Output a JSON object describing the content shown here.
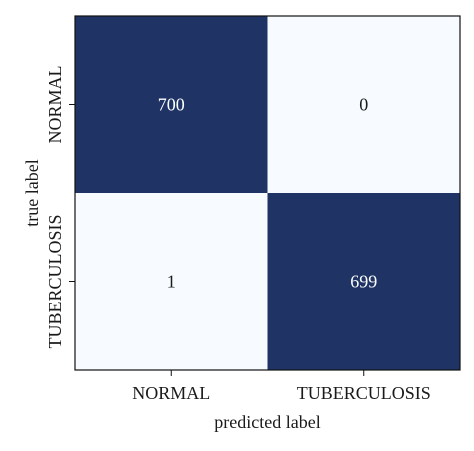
{
  "chart_data": {
    "type": "heatmap",
    "xlabel": "predicted label",
    "ylabel": "true label",
    "x_categories": [
      "NORMAL",
      "TUBERCULOSIS"
    ],
    "y_categories": [
      "NORMAL",
      "TUBERCULOSIS"
    ],
    "values": [
      [
        700,
        0
      ],
      [
        1,
        699
      ]
    ],
    "cell_labels": [
      [
        "700",
        "0"
      ],
      [
        "1",
        "699"
      ]
    ],
    "colormap": {
      "low": "#f7fbff",
      "high": "#1f3465"
    },
    "value_range": [
      0,
      700
    ],
    "grid": false,
    "legend": "none"
  }
}
